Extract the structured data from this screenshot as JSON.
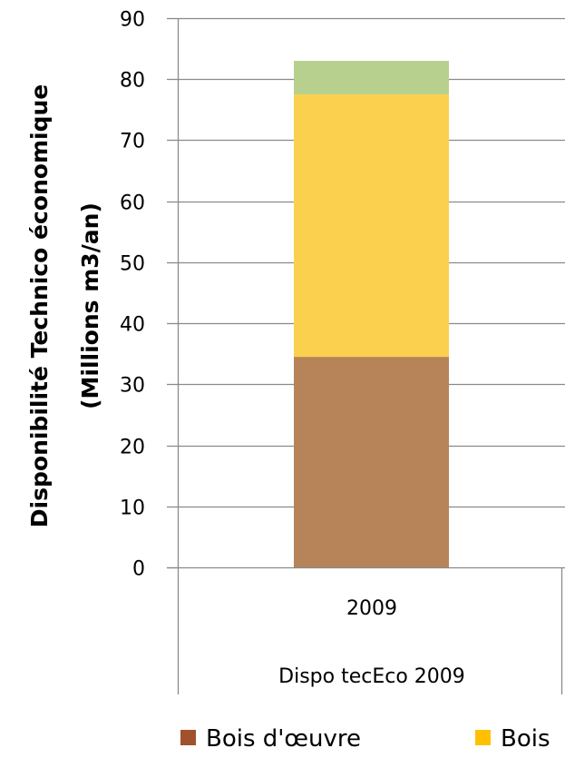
{
  "chart_data": {
    "type": "bar",
    "stacked": true,
    "ylabel_lines": [
      "Disponibilité Technico économique",
      "(Millions m3/an)"
    ],
    "ylim": [
      0,
      90
    ],
    "yticks": [
      0,
      10,
      20,
      30,
      40,
      50,
      60,
      70,
      80,
      90
    ],
    "grid": true,
    "categories": [
      "2009"
    ],
    "category_group": "Dispo tecEco 2009",
    "series": [
      {
        "name": "Bois d'œuvre",
        "values": [
          34.5
        ],
        "color": "#B7845A"
      },
      {
        "name": "Bois",
        "values": [
          43.0
        ],
        "color": "#FCD04F"
      },
      {
        "name": "",
        "values": [
          5.5
        ],
        "color": "#B8D08E"
      }
    ],
    "legend": {
      "position": "bottom",
      "items": [
        {
          "label": "Bois d'œuvre",
          "color": "#A0522D"
        },
        {
          "label": "Bois",
          "color": "#FFC000"
        }
      ]
    }
  }
}
